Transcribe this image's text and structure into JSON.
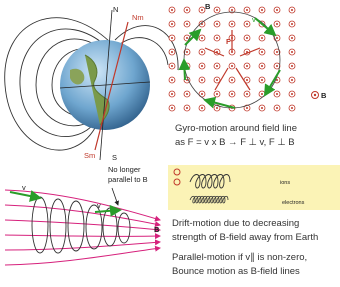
{
  "earth": {
    "north": "N",
    "mag_north": "Nm",
    "mag_south": "Sm",
    "south": "S"
  },
  "gyro": {
    "field": "B",
    "field_legend": "B",
    "force": "F",
    "velocity": "v",
    "caption": [
      "Gyro-motion around field line",
      "as F = v x B → F ⊥ v, F ⊥ B"
    ]
  },
  "drift_figure": {
    "velocity_start": "v",
    "velocity": "v",
    "note": [
      "No longer",
      "parallel to B"
    ],
    "field": "B"
  },
  "drift_box": {
    "ions": "ions",
    "electrons": "electrons"
  },
  "drift": {
    "caption": [
      "Drift-motion due to decreasing",
      "strength of B-field away from Earth"
    ]
  },
  "parallel": {
    "caption": [
      "Parallel-motion if v∥ is non-zero,",
      "Bounce motion as B-field lines"
    ]
  }
}
